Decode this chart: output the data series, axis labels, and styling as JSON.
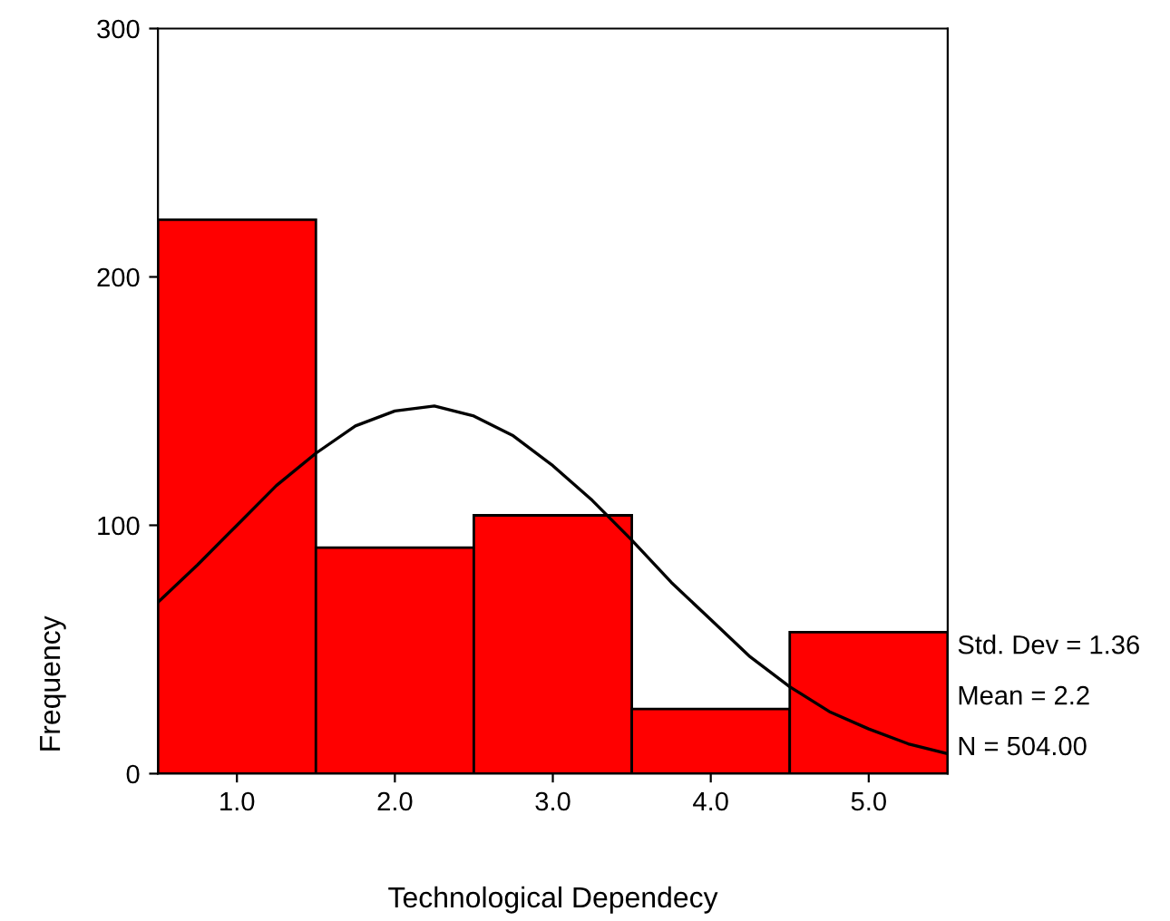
{
  "chart_data": {
    "type": "histogram",
    "xlabel": "Technological Dependecy",
    "ylabel": "Frequency",
    "bins": [
      0.5,
      1.5,
      2.5,
      3.5,
      4.5,
      5.5
    ],
    "values": [
      223,
      91,
      104,
      26,
      57
    ],
    "color": "#ff0000",
    "series": [
      {
        "type": "line",
        "color": "#000000",
        "x": [
          0.5,
          0.75,
          1.0,
          1.25,
          1.5,
          1.75,
          2.0,
          2.25,
          2.5,
          2.75,
          3.0,
          3.25,
          3.5,
          3.75,
          4.0,
          4.25,
          4.5,
          4.75,
          5.0,
          5.25,
          5.5
        ],
        "values": [
          69,
          84,
          100,
          116,
          129,
          140,
          146,
          148,
          144,
          136,
          124,
          110,
          94,
          77,
          62,
          47,
          35,
          25,
          18,
          12,
          8
        ]
      }
    ],
    "xlim": [
      0.5,
      5.5
    ],
    "xticks": [
      {
        "value": 1,
        "label": "1.0"
      },
      {
        "value": 2,
        "label": "2.0"
      },
      {
        "value": 3,
        "label": "3.0"
      },
      {
        "value": 4,
        "label": "4.0"
      },
      {
        "value": 5,
        "label": "5.0"
      }
    ],
    "ylim": [
      0,
      300
    ],
    "yticks": [
      0,
      100,
      200,
      300
    ],
    "annotations": [
      "Std. Dev = 1.36",
      "Mean = 2.2",
      "N = 504.00"
    ],
    "grid": false,
    "legend": false
  }
}
